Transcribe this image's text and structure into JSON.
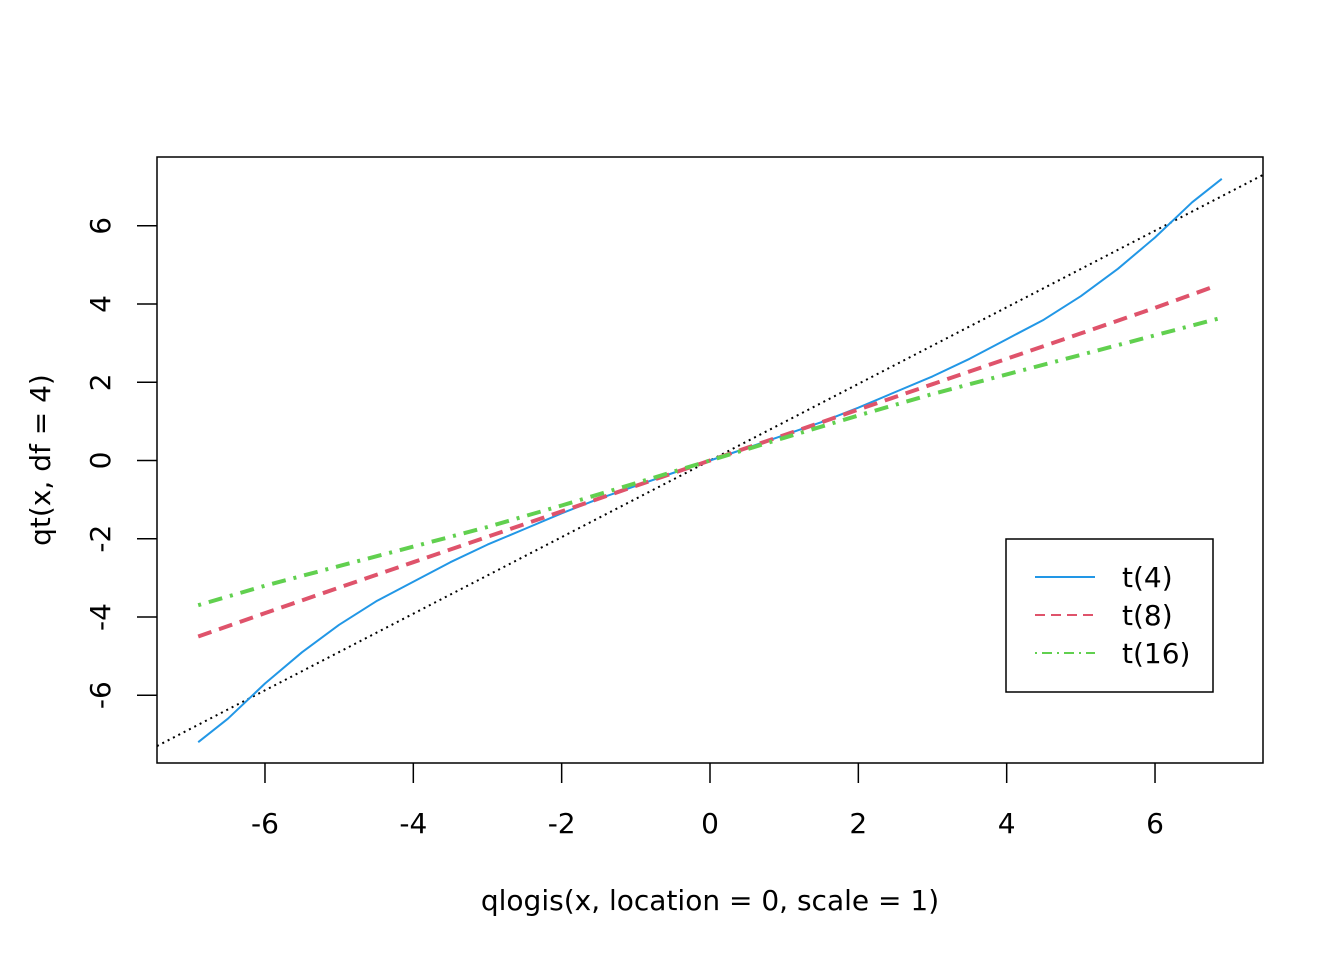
{
  "chart_data": {
    "type": "line",
    "title": "",
    "xlabel": "qlogis(x, location = 0, scale = 1)",
    "ylabel": "qt(x, df = 4)",
    "xlim": [
      -7.3,
      7.3
    ],
    "ylim": [
      -7.7,
      7.8
    ],
    "x_ticks": [
      -6,
      -4,
      -2,
      0,
      2,
      4,
      6
    ],
    "y_ticks": [
      -6,
      -4,
      -2,
      0,
      2,
      4,
      6
    ],
    "x_tick_labels": [
      "-6",
      "-4",
      "-2",
      "0",
      "2",
      "4",
      "6"
    ],
    "y_tick_labels": [
      "-6",
      "-4",
      "-2",
      "0",
      "2",
      "4",
      "6"
    ],
    "grid": false,
    "legend_position": "bottom-right",
    "reference_line": {
      "slope": 1,
      "intercept": 0,
      "style": "dotted",
      "color": "#000000"
    },
    "series": [
      {
        "name": "t(4)",
        "color": "#2297E6",
        "line_style": "solid",
        "x": [
          -6.9,
          -6.5,
          -6.0,
          -5.5,
          -5.0,
          -4.5,
          -4.0,
          -3.5,
          -3.0,
          -2.5,
          -2.0,
          -1.5,
          -1.0,
          -0.5,
          0.0,
          0.5,
          1.0,
          1.5,
          2.0,
          2.5,
          3.0,
          3.5,
          4.0,
          4.5,
          5.0,
          5.5,
          6.0,
          6.5,
          6.9
        ],
        "y": [
          -7.2,
          -6.6,
          -5.7,
          -4.9,
          -4.2,
          -3.6,
          -3.1,
          -2.6,
          -2.15,
          -1.75,
          -1.35,
          -0.98,
          -0.65,
          -0.32,
          0.0,
          0.32,
          0.65,
          0.98,
          1.35,
          1.75,
          2.15,
          2.6,
          3.1,
          3.6,
          4.2,
          4.9,
          5.7,
          6.6,
          7.2
        ]
      },
      {
        "name": "t(8)",
        "color": "#DF536B",
        "line_style": "dashed",
        "x": [
          -6.9,
          -6.0,
          -5.0,
          -4.0,
          -3.0,
          -2.0,
          -1.0,
          0.0,
          1.0,
          2.0,
          3.0,
          4.0,
          5.0,
          6.0,
          6.8
        ],
        "y": [
          -4.5,
          -3.9,
          -3.25,
          -2.6,
          -1.95,
          -1.3,
          -0.65,
          0.0,
          0.65,
          1.3,
          1.95,
          2.6,
          3.25,
          3.9,
          4.45
        ]
      },
      {
        "name": "t(16)",
        "color": "#61D04F",
        "line_style": "dotdash",
        "x": [
          -6.9,
          -6.0,
          -5.0,
          -4.0,
          -3.0,
          -2.0,
          -1.0,
          0.0,
          1.0,
          2.0,
          3.0,
          4.0,
          5.0,
          6.0,
          6.9
        ],
        "y": [
          -3.7,
          -3.2,
          -2.7,
          -2.2,
          -1.7,
          -1.15,
          -0.58,
          0.0,
          0.58,
          1.15,
          1.7,
          2.2,
          2.7,
          3.2,
          3.65
        ]
      }
    ]
  }
}
